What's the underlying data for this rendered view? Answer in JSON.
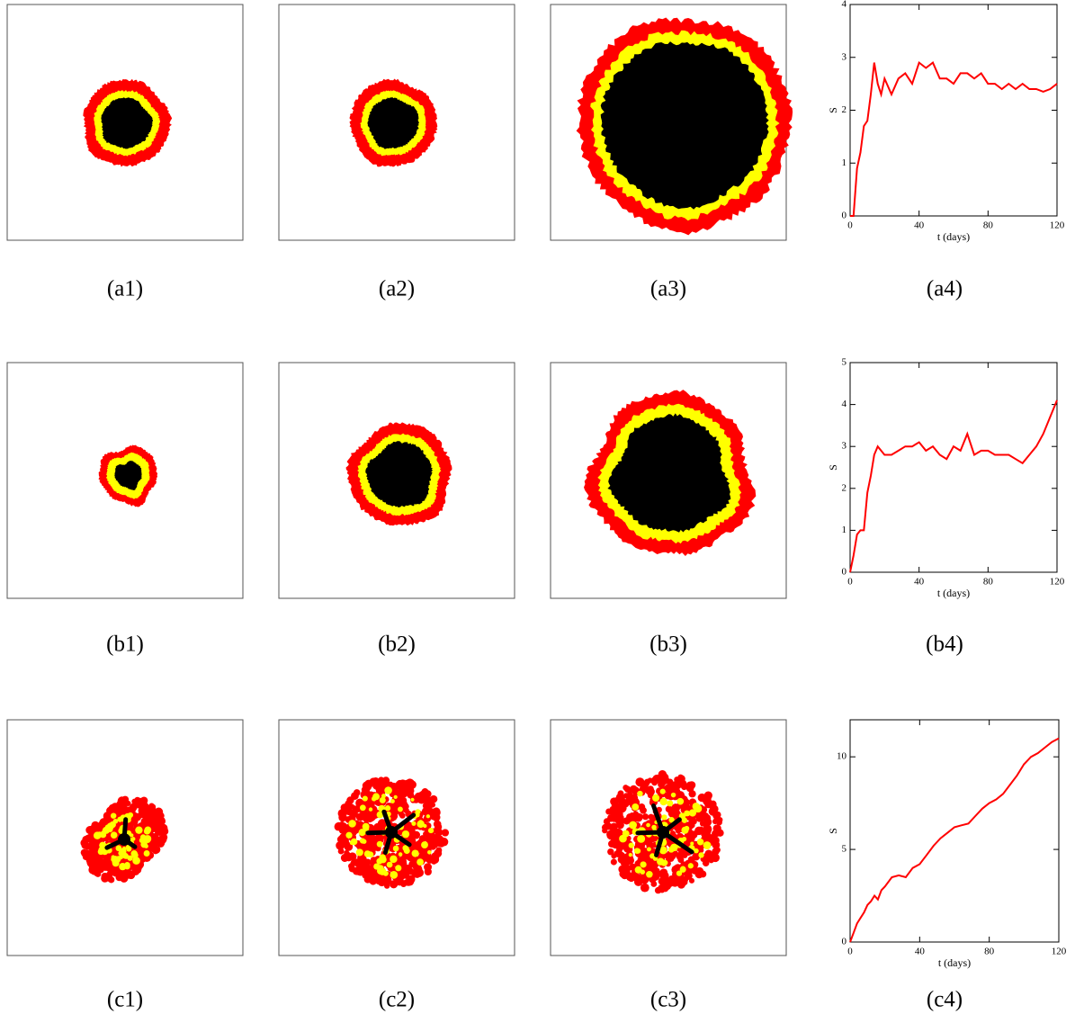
{
  "chart_data": [
    {
      "type": "line",
      "xlabel": "t (days)",
      "ylabel": "S",
      "color": "#ff0000",
      "xlim": [
        0,
        120
      ],
      "ylim": [
        0,
        4
      ],
      "xticks": [
        0,
        40,
        80,
        120
      ],
      "yticks": [
        0,
        1,
        2,
        3,
        4
      ],
      "x": [
        0,
        2,
        4,
        6,
        8,
        10,
        12,
        14,
        16,
        18,
        20,
        24,
        28,
        32,
        36,
        40,
        44,
        48,
        52,
        56,
        60,
        64,
        68,
        72,
        76,
        80,
        84,
        88,
        92,
        96,
        100,
        104,
        108,
        112,
        116,
        120
      ],
      "values": [
        0,
        0,
        0.9,
        1.2,
        1.7,
        1.8,
        2.3,
        2.9,
        2.5,
        2.3,
        2.6,
        2.3,
        2.6,
        2.7,
        2.5,
        2.9,
        2.8,
        2.9,
        2.6,
        2.6,
        2.5,
        2.7,
        2.7,
        2.6,
        2.7,
        2.5,
        2.5,
        2.4,
        2.5,
        2.4,
        2.5,
        2.4,
        2.4,
        2.35,
        2.4,
        2.5
      ]
    },
    {
      "type": "line",
      "xlabel": "t (days)",
      "ylabel": "S",
      "color": "#ff0000",
      "xlim": [
        0,
        120
      ],
      "ylim": [
        0,
        5
      ],
      "xticks": [
        0,
        40,
        80,
        120
      ],
      "yticks": [
        0,
        1,
        2,
        3,
        4,
        5
      ],
      "x": [
        0,
        2,
        4,
        6,
        8,
        10,
        12,
        14,
        16,
        18,
        20,
        24,
        28,
        32,
        36,
        40,
        44,
        48,
        52,
        56,
        60,
        64,
        68,
        72,
        76,
        80,
        84,
        88,
        92,
        96,
        100,
        104,
        108,
        112,
        116,
        120
      ],
      "values": [
        0,
        0.4,
        0.9,
        1.0,
        1.0,
        1.9,
        2.3,
        2.8,
        3.0,
        2.9,
        2.8,
        2.8,
        2.9,
        3.0,
        3.0,
        3.1,
        2.9,
        3.0,
        2.8,
        2.7,
        3.0,
        2.9,
        3.3,
        2.8,
        2.9,
        2.9,
        2.8,
        2.8,
        2.8,
        2.7,
        2.6,
        2.8,
        3.0,
        3.3,
        3.7,
        4.1
      ]
    },
    {
      "type": "line",
      "xlabel": "t (days)",
      "ylabel": "S",
      "color": "#ff0000",
      "xlim": [
        0,
        120
      ],
      "ylim": [
        0,
        12
      ],
      "xticks": [
        0,
        40,
        80,
        120
      ],
      "yticks": [
        0,
        5,
        10
      ],
      "x": [
        0,
        2,
        4,
        6,
        8,
        10,
        12,
        14,
        16,
        18,
        20,
        24,
        28,
        32,
        36,
        40,
        44,
        48,
        52,
        56,
        60,
        64,
        68,
        72,
        76,
        80,
        84,
        88,
        92,
        96,
        100,
        104,
        108,
        112,
        116,
        120
      ],
      "values": [
        0,
        0.5,
        1.0,
        1.3,
        1.6,
        2.0,
        2.2,
        2.5,
        2.3,
        2.8,
        3.0,
        3.5,
        3.6,
        3.5,
        4.0,
        4.2,
        4.7,
        5.2,
        5.6,
        5.9,
        6.2,
        6.3,
        6.4,
        6.8,
        7.2,
        7.5,
        7.7,
        8.0,
        8.5,
        9.0,
        9.6,
        10.0,
        10.2,
        10.5,
        10.8,
        11.0
      ]
    }
  ],
  "captions": [
    "(a1)",
    "(a2)",
    "(a3)",
    "(a4)",
    "(b1)",
    "(b2)",
    "(b3)",
    "(b4)",
    "(c1)",
    "(c2)",
    "(c3)",
    "(c4)"
  ]
}
